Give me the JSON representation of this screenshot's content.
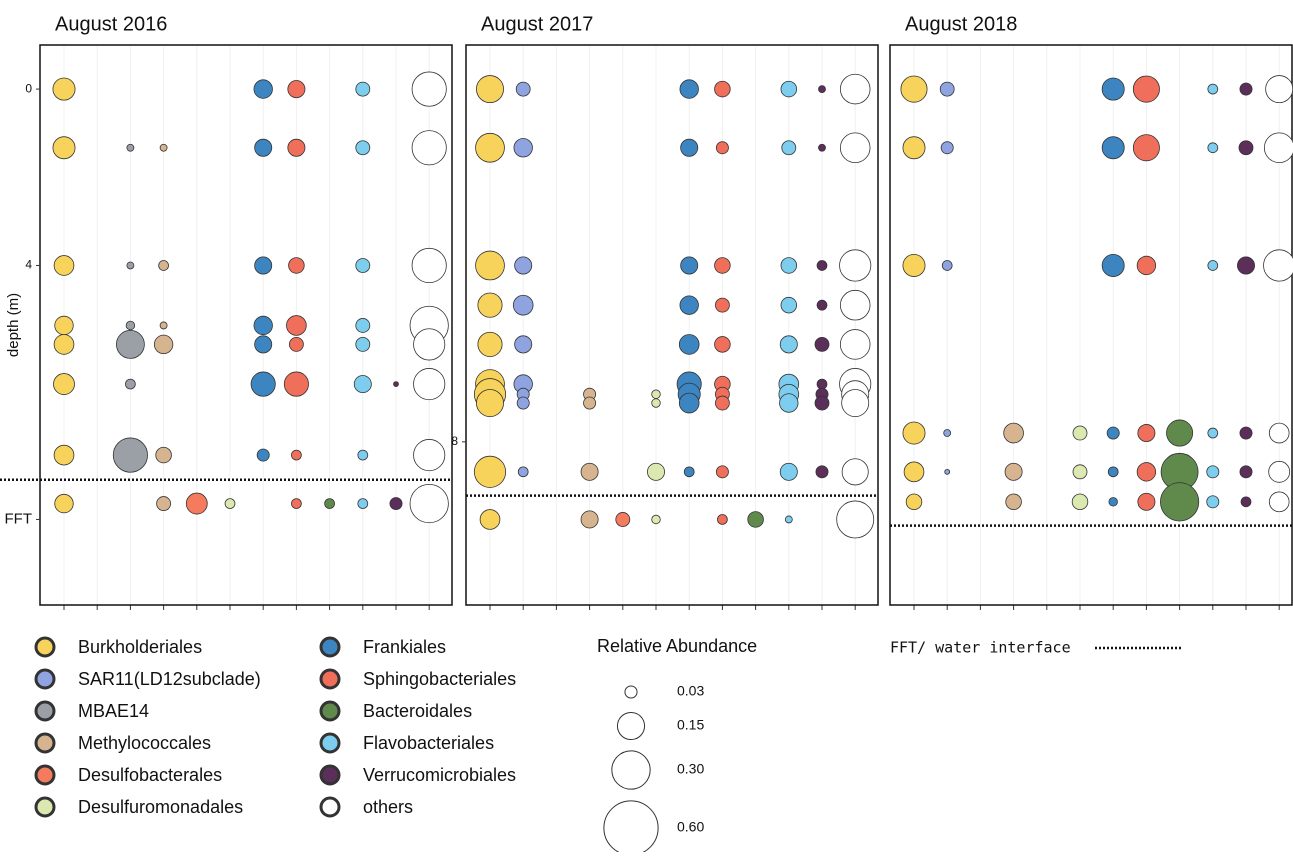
{
  "chart_data": [
    {
      "type": "bubble",
      "title": "August 2016",
      "ylabel": "depth (m)",
      "ylim": [
        -1,
        11.7
      ],
      "yticks": [
        0,
        4,
        {
          "value": 9.76,
          "label": "FFT"
        }
      ],
      "interface": 8.86,
      "y": [
        0,
        1.33,
        4,
        5.36,
        5.79,
        6.69,
        8.3,
        9.4
      ],
      "series": [
        {
          "values": [
            0.1,
            0.1,
            0.08,
            0.07,
            0.08,
            0.09,
            0.08,
            0.07
          ]
        },
        {
          "values": [
            null,
            null,
            null,
            null,
            null,
            null,
            null,
            null
          ]
        },
        {
          "values": [
            null,
            0.01,
            0.01,
            0.015,
            0.16,
            0.02,
            0.24,
            null
          ]
        },
        {
          "values": [
            null,
            0.01,
            0.02,
            0.01,
            0.07,
            null,
            0.05,
            0.04
          ]
        },
        {
          "values": [
            null,
            null,
            null,
            null,
            null,
            null,
            null,
            0.09
          ]
        },
        {
          "values": [
            null,
            null,
            null,
            null,
            null,
            null,
            null,
            0.02
          ]
        },
        {
          "values": [
            0.07,
            0.06,
            0.06,
            0.07,
            0.06,
            0.12,
            0.03,
            null
          ]
        },
        {
          "values": [
            0.06,
            0.06,
            0.05,
            0.08,
            0.04,
            0.12,
            0.02,
            0.02
          ]
        },
        {
          "values": [
            null,
            null,
            null,
            null,
            null,
            null,
            null,
            0.02
          ]
        },
        {
          "values": [
            0.04,
            0.04,
            0.04,
            0.04,
            0.04,
            0.06,
            0.02,
            0.02
          ]
        },
        {
          "values": [
            null,
            null,
            null,
            null,
            null,
            0.005,
            null,
            0.03
          ]
        },
        {
          "values": [
            0.24,
            0.24,
            0.24,
            0.3,
            0.2,
            0.2,
            0.2,
            0.3
          ]
        }
      ]
    },
    {
      "type": "bubble",
      "title": "August 2017",
      "ylim": [
        -1,
        11.7
      ],
      "yticks": [
        8
      ],
      "interface": 9.22,
      "y": [
        0,
        1.33,
        4,
        4.9,
        5.79,
        6.69,
        6.92,
        7.12,
        8.68,
        9.76
      ],
      "series": [
        {
          "values": [
            0.15,
            0.17,
            0.17,
            0.12,
            0.12,
            0.17,
            0.2,
            0.15,
            0.2,
            0.08
          ]
        },
        {
          "values": [
            0.04,
            0.07,
            0.06,
            0.08,
            0.06,
            0.07,
            0.03,
            0.03,
            0.02,
            null
          ]
        },
        {
          "values": [
            null,
            null,
            null,
            null,
            null,
            null,
            null,
            null,
            null,
            null
          ]
        },
        {
          "values": [
            null,
            null,
            null,
            null,
            null,
            null,
            0.03,
            0.03,
            0.06,
            0.06
          ]
        },
        {
          "values": [
            null,
            null,
            null,
            null,
            null,
            null,
            null,
            null,
            null,
            0.04
          ]
        },
        {
          "values": [
            null,
            null,
            null,
            null,
            null,
            null,
            0.015,
            0.015,
            0.06,
            0.015
          ]
        },
        {
          "values": [
            0.07,
            0.06,
            0.06,
            0.07,
            0.08,
            0.12,
            0.1,
            0.08,
            0.02,
            null
          ]
        },
        {
          "values": [
            0.05,
            0.03,
            0.05,
            0.04,
            0.05,
            0.05,
            0.04,
            0.04,
            0.03,
            0.02
          ]
        },
        {
          "values": [
            null,
            null,
            null,
            null,
            null,
            null,
            null,
            null,
            null,
            0.05
          ]
        },
        {
          "values": [
            0.05,
            0.04,
            0.05,
            0.05,
            0.06,
            0.08,
            0.08,
            0.07,
            0.06,
            0.01
          ]
        },
        {
          "values": [
            0.01,
            0.01,
            0.02,
            0.02,
            0.04,
            0.02,
            0.03,
            0.04,
            0.03,
            null
          ]
        },
        {
          "values": [
            0.18,
            0.18,
            0.2,
            0.18,
            0.18,
            0.2,
            0.15,
            0.15,
            0.14,
            0.28
          ]
        }
      ]
    },
    {
      "type": "bubble",
      "title": "August 2018",
      "ylim": [
        -1,
        11.7
      ],
      "yticks": [],
      "interface": 9.9,
      "y": [
        0,
        1.33,
        4,
        7.8,
        8.68,
        9.36
      ],
      "series": [
        {
          "values": [
            0.14,
            0.1,
            0.1,
            0.1,
            0.08,
            0.05
          ]
        },
        {
          "values": [
            0.04,
            0.03,
            0.02,
            0.01,
            0.005,
            null
          ]
        },
        {
          "values": [
            null,
            null,
            null,
            null,
            null,
            null
          ]
        },
        {
          "values": [
            null,
            null,
            null,
            0.08,
            0.06,
            0.05
          ]
        },
        {
          "values": [
            null,
            null,
            null,
            null,
            null,
            null
          ]
        },
        {
          "values": [
            null,
            null,
            null,
            0.04,
            0.04,
            0.05
          ]
        },
        {
          "values": [
            0.1,
            0.1,
            0.1,
            0.03,
            0.02,
            0.015
          ]
        },
        {
          "values": [
            0.14,
            0.14,
            0.07,
            0.06,
            0.07,
            0.06
          ]
        },
        {
          "values": [
            null,
            null,
            null,
            0.14,
            0.28,
            0.3
          ]
        },
        {
          "values": [
            0.02,
            0.02,
            0.02,
            0.02,
            0.03,
            0.03
          ]
        },
        {
          "values": [
            0.03,
            0.04,
            0.06,
            0.03,
            0.03,
            0.02
          ]
        },
        {
          "values": [
            0.15,
            0.18,
            0.2,
            0.08,
            0.09,
            0.08
          ]
        }
      ]
    }
  ],
  "legend": {
    "items": [
      {
        "name": "Burkholderiales",
        "color": "#f7d35b"
      },
      {
        "name": "SAR11(LD12subclade)",
        "color": "#8ea3e0"
      },
      {
        "name": "MBAE14",
        "color": "#9aa0a6"
      },
      {
        "name": "Methylococcales",
        "color": "#d6b48f"
      },
      {
        "name": "Desulfobacterales",
        "color": "#f47b5e"
      },
      {
        "name": "Desulfuromonadales",
        "color": "#dbe8b0"
      },
      {
        "name": "Frankiales",
        "color": "#3d85c0"
      },
      {
        "name": "Sphingobacteriales",
        "color": "#ef6f5a"
      },
      {
        "name": "Bacteroidales",
        "color": "#5f8a4c"
      },
      {
        "name": "Flavobacteriales",
        "color": "#7dcdef"
      },
      {
        "name": "Verrucomicrobiales",
        "color": "#5c2e5a"
      },
      {
        "name": "others",
        "color": "#ffffff"
      }
    ],
    "size_title": "Relative Abundance",
    "sizes": [
      0.03,
      0.15,
      {
        "value": 0.3,
        "label": "0.30"
      },
      {
        "value": 0.6,
        "label": "0.60"
      }
    ],
    "interface_label": "FFT/ water interface"
  }
}
